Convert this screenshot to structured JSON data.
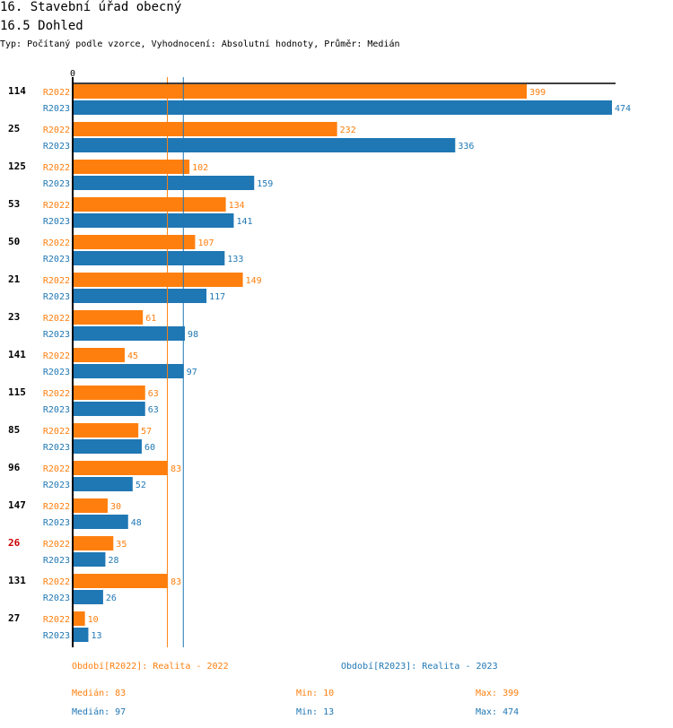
{
  "header": {
    "title": "16. Stavební úřad obecný",
    "subtitle": "16.5 Dohled",
    "info": "Typ: Počítaný podle vzorce, Vyhodnocení: Absolutní hodnoty, Průměr: Medián"
  },
  "colors": {
    "R2022": "#ff7f0e",
    "R2023": "#1f77b4",
    "highlight": "#cc0000"
  },
  "chart_data": {
    "type": "bar",
    "orientation": "horizontal",
    "axis_zero_label": "0",
    "xlim": [
      0,
      474
    ],
    "categories": [
      "114",
      "25",
      "125",
      "53",
      "50",
      "21",
      "23",
      "141",
      "115",
      "85",
      "96",
      "147",
      "26",
      "131",
      "27"
    ],
    "highlighted_category": "26",
    "series": [
      {
        "name": "R2022",
        "values": [
          399,
          232,
          102,
          134,
          107,
          149,
          61,
          45,
          63,
          57,
          83,
          30,
          35,
          83,
          10
        ]
      },
      {
        "name": "R2023",
        "values": [
          474,
          336,
          159,
          141,
          133,
          117,
          98,
          97,
          63,
          60,
          52,
          48,
          28,
          26,
          13
        ]
      }
    ],
    "median_lines": {
      "R2022": 83,
      "R2023": 97
    }
  },
  "legend": {
    "r2022": "Období[R2022]: Realita - 2022",
    "r2023": "Období[R2023]: Realita - 2023",
    "stats": {
      "r2022": {
        "median": "Medián: 83",
        "min": "Min: 10",
        "max": "Max: 399"
      },
      "r2023": {
        "median": "Medián: 97",
        "min": "Min: 13",
        "max": "Max: 474"
      }
    }
  }
}
